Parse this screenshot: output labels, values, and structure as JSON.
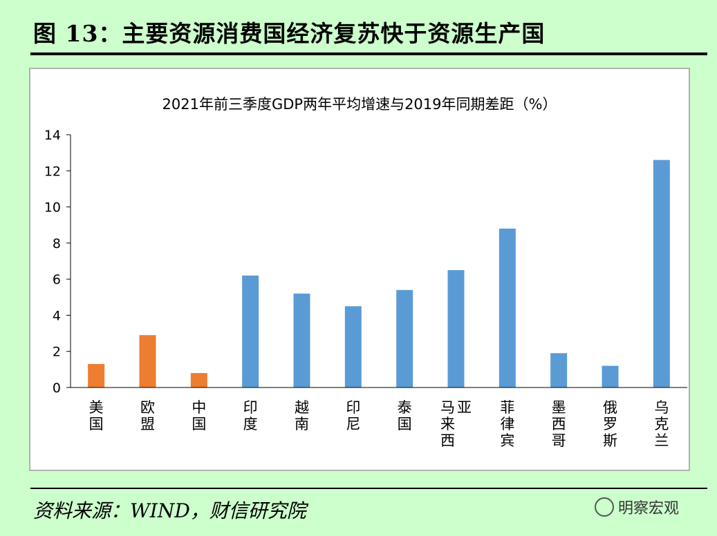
{
  "figure_title": "图 13：主要资源消费国经济复苏快于资源生产国",
  "source": "资料来源：WIND，财信研究院",
  "watermark": "明察宏观",
  "chart_data": {
    "type": "bar",
    "title": "2021年前三季度GDP两年平均增速与2019年同期差距（%）",
    "categories": [
      "美国",
      "欧盟",
      "中国",
      "印度",
      "越南",
      "印尼",
      "泰国",
      "马来西亚",
      "菲律宾",
      "墨西哥",
      "俄罗斯",
      "乌克兰"
    ],
    "values": [
      1.3,
      2.9,
      0.8,
      6.2,
      5.2,
      4.5,
      5.4,
      6.5,
      8.8,
      1.9,
      1.2,
      12.6
    ],
    "bar_colors": [
      "#ed7d31",
      "#ed7d31",
      "#ed7d31",
      "#5b9bd5",
      "#5b9bd5",
      "#5b9bd5",
      "#5b9bd5",
      "#5b9bd5",
      "#5b9bd5",
      "#5b9bd5",
      "#5b9bd5",
      "#5b9bd5"
    ],
    "yticks": [
      "0",
      "2",
      "4",
      "6",
      "8",
      "10",
      "12",
      "14"
    ],
    "ylim": [
      0,
      14
    ],
    "xlabel": "",
    "ylabel": "",
    "grid": false,
    "legend": "none"
  }
}
